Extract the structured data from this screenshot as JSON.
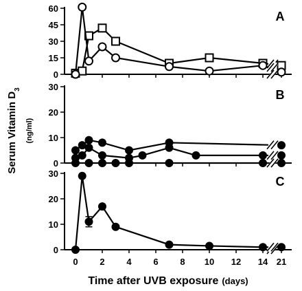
{
  "chart_data": {
    "type": "line",
    "xlabel": "Time after UVB exposure",
    "xlabel_unit": "(days)",
    "ylabel": "Serum Vitamin D",
    "ylabel_sub": "3",
    "ylabel_unit": "(ng/ml)",
    "x_ticks": [
      "0",
      "2",
      "4",
      "6",
      "8",
      "10",
      "12",
      "14",
      "21"
    ],
    "x_break_after": 14,
    "panels": [
      {
        "label": "A",
        "ylim": [
          0,
          60
        ],
        "y_ticks": [
          "0",
          "15",
          "30",
          "45",
          "60"
        ],
        "series": [
          {
            "marker": "open-square",
            "x": [
              0,
              0.5,
              1,
              2,
              3,
              7,
              10,
              14,
              21
            ],
            "y": [
              1,
              3,
              35,
              42,
              30,
              10,
              15,
              10,
              8
            ]
          },
          {
            "marker": "open-circle",
            "x": [
              0,
              0.5,
              1,
              2,
              3,
              7,
              10,
              14,
              21
            ],
            "y": [
              0,
              61,
              12,
              25,
              15,
              7,
              3,
              8,
              2
            ]
          }
        ]
      },
      {
        "label": "B",
        "ylim": [
          0,
          30
        ],
        "y_ticks": [
          "0",
          "10",
          "20",
          "30"
        ],
        "series": [
          {
            "marker": "filled-circle",
            "x": [
              0,
              0.5,
              1,
              2,
              4,
              7,
              21
            ],
            "y": [
              5,
              7,
              9,
              8,
              5,
              8,
              7
            ]
          },
          {
            "marker": "filled-circle",
            "x": [
              0,
              0.5,
              1,
              2,
              4,
              5,
              7,
              9,
              14,
              21
            ],
            "y": [
              2,
              3,
              6,
              3,
              2,
              3,
              6,
              3,
              3,
              3
            ]
          },
          {
            "marker": "filled-circle",
            "x": [
              0,
              1,
              2,
              3,
              4,
              7,
              14,
              21
            ],
            "y": [
              0,
              0,
              0,
              0,
              0,
              0,
              0,
              0
            ]
          }
        ]
      },
      {
        "label": "C",
        "ylim": [
          0,
          30
        ],
        "y_ticks": [
          "0",
          "10",
          "20",
          "30"
        ],
        "series": [
          {
            "marker": "filled-circle",
            "x": [
              0,
              0.5,
              1,
              2,
              3,
              7,
              10,
              14,
              21
            ],
            "y": [
              0,
              29,
              11,
              17,
              9,
              2,
              1.5,
              1,
              1
            ],
            "error": [
              0,
              0,
              2,
              0,
              0,
              0,
              0,
              0,
              0
            ]
          }
        ]
      }
    ]
  }
}
